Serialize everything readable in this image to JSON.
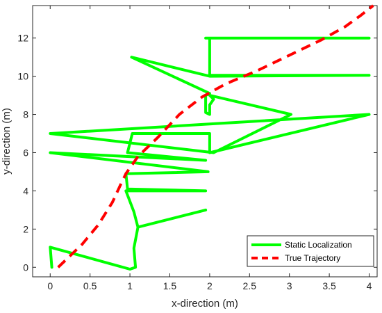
{
  "chart_data": {
    "type": "line",
    "xlabel": "x-direction (m)",
    "ylabel": "y-direction (m)",
    "xlim": [
      -0.22,
      4.1
    ],
    "ylim": [
      -0.5,
      13.7
    ],
    "xticks": [
      0,
      0.5,
      1,
      1.5,
      2,
      2.5,
      3,
      3.5,
      4
    ],
    "xtick_labels": [
      "0",
      "0.5",
      "1",
      "1.5",
      "2",
      "2.5",
      "3",
      "3.5",
      "4"
    ],
    "yticks": [
      0,
      2,
      4,
      6,
      8,
      10,
      12
    ],
    "ytick_labels": [
      "0",
      "2",
      "4",
      "6",
      "8",
      "10",
      "12"
    ],
    "grid": false,
    "legend_position": "bottom-right",
    "series": [
      {
        "name": "Static Localization",
        "color": "#00ff00",
        "style": "solid",
        "x": [
          0.02,
          0.0,
          1.0,
          1.07,
          1.05,
          1.1,
          1.95,
          1.1,
          1.05,
          0.95,
          1.95,
          0.97,
          0.95,
          1.98,
          0.0,
          1.95,
          0.97,
          1.03,
          2.0,
          2.0,
          4.0,
          2.0,
          0.0,
          2.05,
          3.02,
          2.0,
          2.05,
          2.0,
          2.0,
          1.95,
          1.95,
          2.0,
          1.02,
          2.0,
          4.0,
          2.0,
          2.0,
          1.95,
          1.95,
          4.0
        ],
        "y": [
          0.0,
          1.05,
          -0.1,
          0.0,
          1.0,
          2.1,
          3.0,
          2.1,
          2.9,
          4.0,
          4.0,
          4.1,
          4.9,
          5.0,
          6.0,
          5.6,
          6.0,
          7.0,
          7.0,
          6.0,
          8.0,
          7.5,
          7.0,
          6.0,
          8.0,
          9.0,
          8.8,
          8.5,
          8.0,
          8.1,
          9.0,
          9.1,
          11.0,
          10.0,
          10.05,
          10.05,
          12.0,
          12.0,
          12.0,
          12.0
        ]
      },
      {
        "name": "True Trajectory",
        "color": "#ff0000",
        "style": "dashed",
        "x": [
          0.1,
          0.2,
          0.4,
          0.6,
          0.78,
          0.88,
          0.95,
          1.1,
          1.35,
          1.62,
          1.9,
          2.2,
          2.6,
          3.0,
          3.4,
          3.7,
          3.9,
          4.05
        ],
        "y": [
          0.0,
          0.4,
          1.2,
          2.2,
          3.4,
          4.3,
          4.9,
          5.8,
          6.8,
          8.0,
          8.9,
          9.6,
          10.3,
          11.1,
          11.9,
          12.6,
          13.2,
          13.7
        ]
      }
    ]
  }
}
